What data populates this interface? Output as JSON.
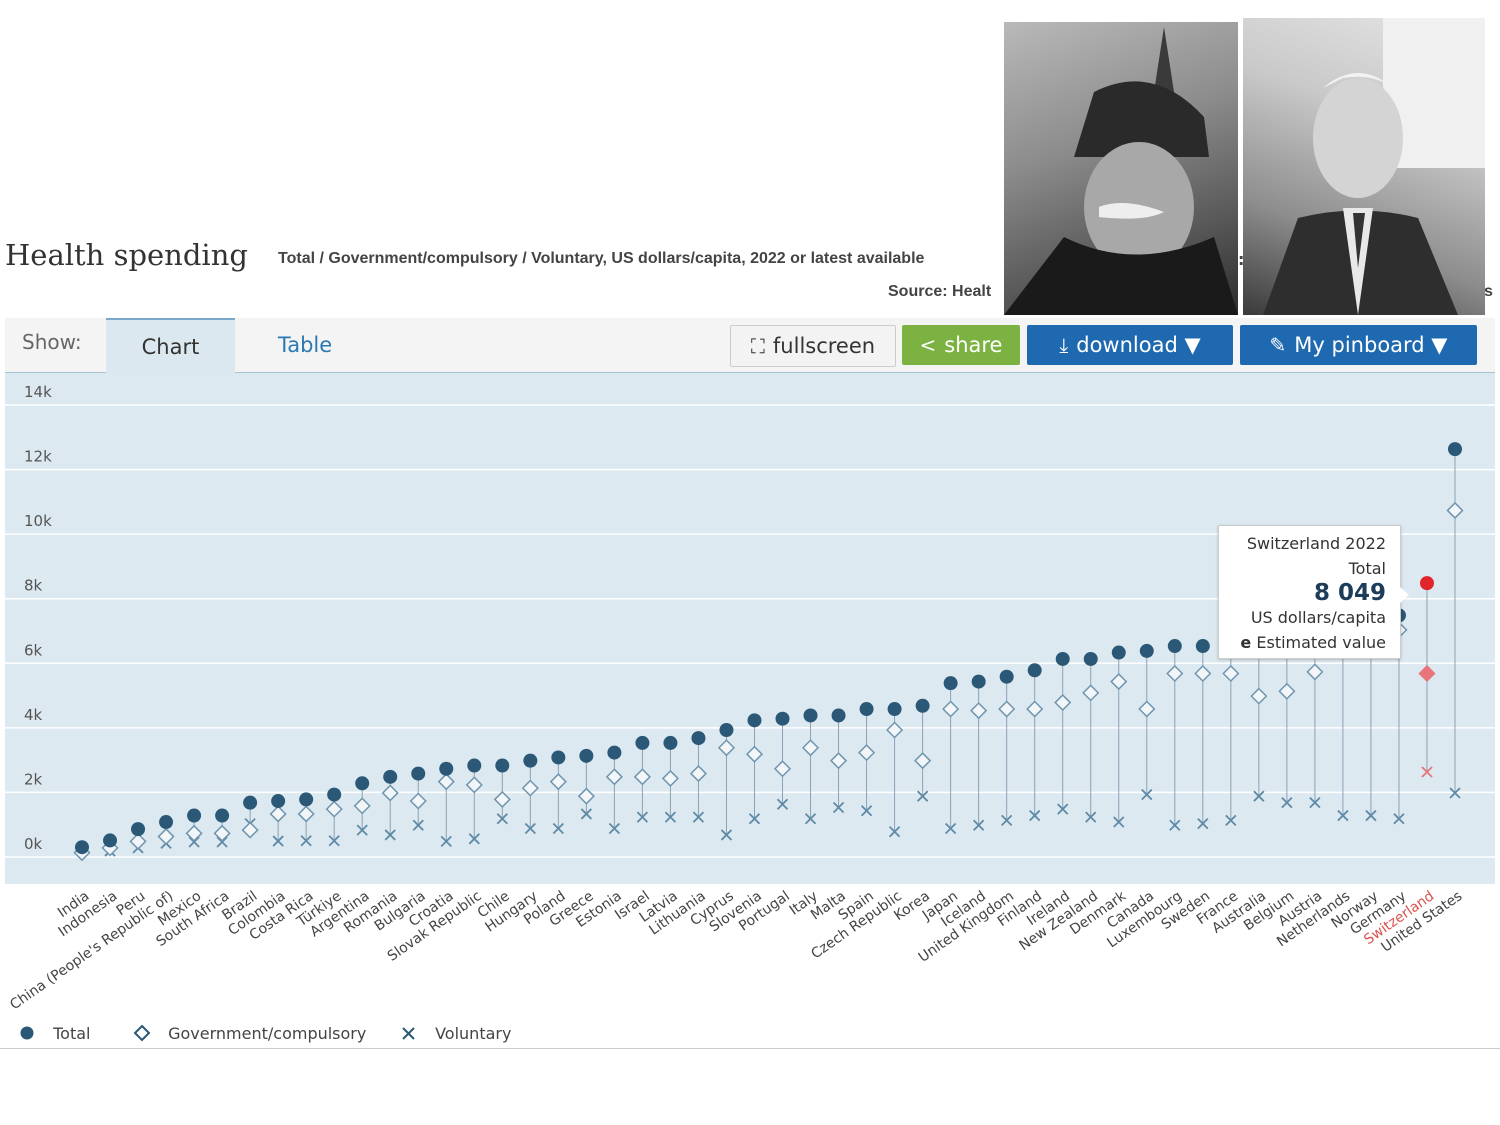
{
  "header": {
    "title": "Health spending",
    "subtitle": "Total / Government/compulsory / Voluntary, US dollars/capita, 2022 or latest available",
    "source": "Source: Healt",
    "source_tail": "s",
    "colon": ":"
  },
  "toolbar": {
    "show_label": "Show:",
    "tab_chart": "Chart",
    "tab_table": "Table",
    "fullscreen_label": "fullscreen",
    "share_label": "share",
    "download_label": "download ▼",
    "pinboard_label": "My pinboard ▼"
  },
  "tooltip": {
    "country_year": "Switzerland 2022",
    "measure": "Total",
    "value": "8 049",
    "unit": "US dollars/capita",
    "flag_code": "e",
    "flag_text": "Estimated value"
  },
  "legend": {
    "total": "Total",
    "government": "Government/compulsory",
    "voluntary": "Voluntary"
  },
  "colors": {
    "series": "#2b5876",
    "highlight": "#e0262b",
    "highlight_marker": "#e8757a",
    "highlight_label": "#d9534f",
    "plot_bg": "#dde9f1",
    "grid": "#ffffff"
  },
  "chart_data": {
    "type": "scatter",
    "ylim": [
      -1000,
      14000
    ],
    "yticks": [
      0,
      2000,
      4000,
      6000,
      8000,
      10000,
      12000,
      14000
    ],
    "ytick_labels": [
      "0k",
      "2k",
      "4k",
      "6k",
      "8k",
      "10k",
      "12k",
      "14k"
    ],
    "grid": true,
    "highlight_category": "Switzerland",
    "categories": [
      "India",
      "Indonesia",
      "Peru",
      "China (People's Republic of)",
      "Mexico",
      "South Africa",
      "Brazil",
      "Colombia",
      "Costa Rica",
      "Türkiye",
      "Argentina",
      "Romania",
      "Bulgaria",
      "Croatia",
      "Slovak Republic",
      "Chile",
      "Hungary",
      "Poland",
      "Greece",
      "Estonia",
      "Israel",
      "Latvia",
      "Lithuania",
      "Cyprus",
      "Slovenia",
      "Portugal",
      "Italy",
      "Malta",
      "Spain",
      "Czech Republic",
      "Korea",
      "Japan",
      "Iceland",
      "United Kingdom",
      "Finland",
      "Ireland",
      "New Zealand",
      "Denmark",
      "Canada",
      "Luxembourg",
      "Sweden",
      "France",
      "Australia",
      "Belgium",
      "Austria",
      "Netherlands",
      "Norway",
      "Germany",
      "Switzerland",
      "United States"
    ],
    "series": [
      {
        "name": "Total",
        "marker": "circle",
        "values": [
          -130,
          80,
          430,
          650,
          850,
          850,
          1250,
          1300,
          1350,
          1500,
          1850,
          2050,
          2150,
          2300,
          2400,
          2400,
          2550,
          2650,
          2700,
          2800,
          3100,
          3100,
          3250,
          3500,
          3800,
          3850,
          3950,
          3950,
          4150,
          4150,
          4250,
          4950,
          5000,
          5150,
          5350,
          5700,
          5700,
          5900,
          5950,
          6100,
          6100,
          6400,
          6400,
          6450,
          6500,
          6600,
          6800,
          7050,
          8049,
          12200
        ]
      },
      {
        "name": "Government/compulsory",
        "marker": "diamond",
        "values": [
          -300,
          -150,
          50,
          200,
          300,
          300,
          400,
          900,
          900,
          1050,
          1150,
          1550,
          1300,
          1900,
          1800,
          1350,
          1700,
          1900,
          1450,
          2050,
          2050,
          2000,
          2150,
          2950,
          2750,
          2300,
          2950,
          2550,
          2800,
          3500,
          2550,
          4150,
          4100,
          4150,
          4150,
          4350,
          4650,
          5000,
          4150,
          5250,
          5250,
          5250,
          4550,
          4700,
          5300,
          6100,
          6300,
          6600,
          5250,
          10300
        ]
      },
      {
        "name": "Voluntary",
        "marker": "x",
        "values": [
          -250,
          -250,
          -150,
          -10,
          30,
          30,
          600,
          60,
          70,
          70,
          400,
          250,
          550,
          50,
          130,
          750,
          450,
          450,
          900,
          450,
          800,
          800,
          800,
          250,
          750,
          1200,
          750,
          1100,
          1000,
          350,
          1450,
          450,
          550,
          700,
          850,
          1050,
          800,
          650,
          1500,
          550,
          600,
          700,
          1450,
          1250,
          1250,
          850,
          850,
          750,
          2200,
          1550
        ]
      }
    ]
  }
}
